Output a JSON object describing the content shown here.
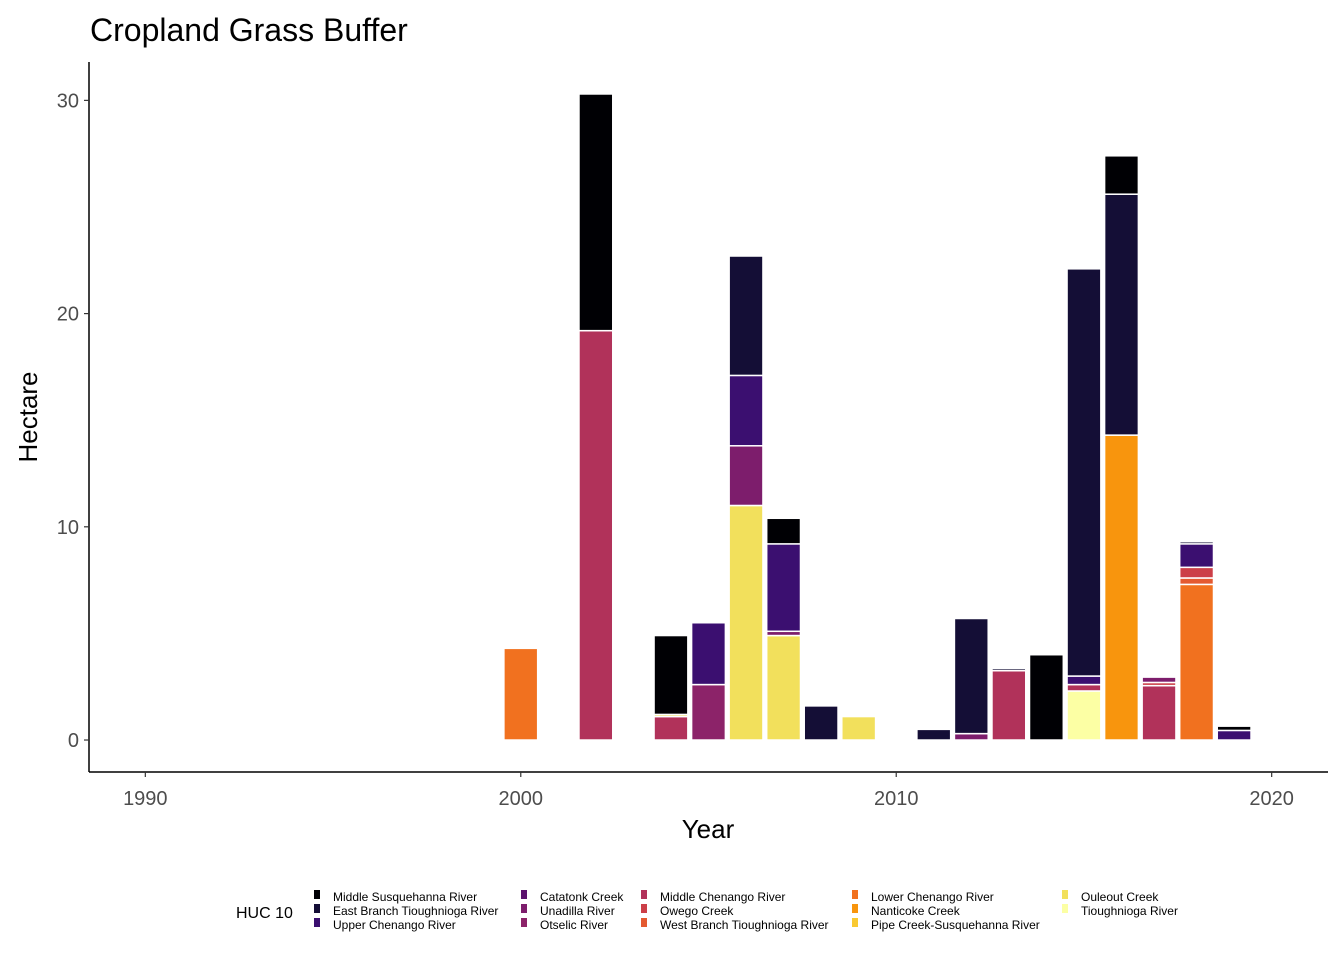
{
  "chart_data": {
    "type": "bar",
    "stacked": true,
    "title": "Cropland Grass Buffer",
    "xlabel": "Year",
    "ylabel": "Hectare",
    "xlim": [
      1988.5,
      2021.5
    ],
    "ylim": [
      -1.5,
      31.8
    ],
    "x_ticks": [
      {
        "value": 1990,
        "label": "1990"
      },
      {
        "value": 2000,
        "label": "2000"
      },
      {
        "value": 2010,
        "label": "2010"
      },
      {
        "value": 2020,
        "label": "2020"
      }
    ],
    "y_ticks": [
      {
        "value": 0,
        "label": "0"
      },
      {
        "value": 10,
        "label": "10"
      },
      {
        "value": 20,
        "label": "20"
      },
      {
        "value": 30,
        "label": "30"
      }
    ],
    "grid": false,
    "legend": {
      "title": "HUC 10",
      "position": "bottom",
      "columns": [
        [
          "Middle Susquehanna River",
          "East Branch Tioughnioga River",
          "Upper Chenango River"
        ],
        [
          "Catatonk Creek",
          "Unadilla River",
          "Otselic River"
        ],
        [
          "Middle Chenango River",
          "Owego Creek",
          "West Branch Tioughnioga River"
        ],
        [
          "Lower Chenango River",
          "Nanticoke Creek",
          "Pipe Creek-Susquehanna River"
        ],
        [
          "Ouleout Creek",
          "Tioughnioga River"
        ]
      ]
    },
    "series": [
      {
        "name": "Middle Susquehanna River",
        "color": "#000004"
      },
      {
        "name": "East Branch Tioughnioga River",
        "color": "#140e36"
      },
      {
        "name": "Upper Chenango River",
        "color": "#3b0f70"
      },
      {
        "name": "Catatonk Creek",
        "color": "#5c126e"
      },
      {
        "name": "Unadilla River",
        "color": "#7d1d6c"
      },
      {
        "name": "Otselic River",
        "color": "#8c2369"
      },
      {
        "name": "Middle Chenango River",
        "color": "#b1325a"
      },
      {
        "name": "Owego Creek",
        "color": "#cc3f48"
      },
      {
        "name": "West Branch Tioughnioga River",
        "color": "#e45a31"
      },
      {
        "name": "Lower Chenango River",
        "color": "#f1711f"
      },
      {
        "name": "Nanticoke Creek",
        "color": "#f8950d"
      },
      {
        "name": "Pipe Creek-Susquehanna River",
        "color": "#f9c932"
      },
      {
        "name": "Ouleout Creek",
        "color": "#f2e05c"
      },
      {
        "name": "Tioughnioga River",
        "color": "#fcffa4"
      }
    ],
    "bars": [
      {
        "year": 2000,
        "stack": [
          {
            "series": "Lower Chenango River",
            "value": 4.3
          }
        ]
      },
      {
        "year": 2002,
        "stack": [
          {
            "series": "Middle Chenango River",
            "value": 19.2
          },
          {
            "series": "Middle Susquehanna River",
            "value": 11.1
          }
        ]
      },
      {
        "year": 2004,
        "stack": [
          {
            "series": "Middle Chenango River",
            "value": 1.1
          },
          {
            "series": "Ouleout Creek",
            "value": 0.1
          },
          {
            "series": "Middle Susquehanna River",
            "value": 3.7
          }
        ]
      },
      {
        "year": 2005,
        "stack": [
          {
            "series": "Otselic River",
            "value": 2.6
          },
          {
            "series": "Upper Chenango River",
            "value": 2.9
          }
        ]
      },
      {
        "year": 2006,
        "stack": [
          {
            "series": "Ouleout Creek",
            "value": 11.0
          },
          {
            "series": "Unadilla River",
            "value": 2.8
          },
          {
            "series": "Upper Chenango River",
            "value": 3.3
          },
          {
            "series": "East Branch Tioughnioga River",
            "value": 5.6
          }
        ]
      },
      {
        "year": 2007,
        "stack": [
          {
            "series": "Ouleout Creek",
            "value": 4.9
          },
          {
            "series": "Unadilla River",
            "value": 0.2
          },
          {
            "series": "Upper Chenango River",
            "value": 4.1
          },
          {
            "series": "Middle Susquehanna River",
            "value": 1.2
          }
        ]
      },
      {
        "year": 2008,
        "stack": [
          {
            "series": "East Branch Tioughnioga River",
            "value": 1.6
          }
        ]
      },
      {
        "year": 2009,
        "stack": [
          {
            "series": "Ouleout Creek",
            "value": 1.1
          }
        ]
      },
      {
        "year": 2011,
        "stack": [
          {
            "series": "East Branch Tioughnioga River",
            "value": 0.5
          }
        ]
      },
      {
        "year": 2012,
        "stack": [
          {
            "series": "Unadilla River",
            "value": 0.3
          },
          {
            "series": "East Branch Tioughnioga River",
            "value": 5.4
          }
        ]
      },
      {
        "year": 2013,
        "stack": [
          {
            "series": "Middle Chenango River",
            "value": 3.25
          },
          {
            "series": "East Branch Tioughnioga River",
            "value": 0.1
          }
        ]
      },
      {
        "year": 2014,
        "stack": [
          {
            "series": "Middle Susquehanna River",
            "value": 4.0
          }
        ]
      },
      {
        "year": 2015,
        "stack": [
          {
            "series": "Tioughnioga River",
            "value": 2.3
          },
          {
            "series": "Middle Chenango River",
            "value": 0.3
          },
          {
            "series": "Upper Chenango River",
            "value": 0.4
          },
          {
            "series": "East Branch Tioughnioga River",
            "value": 19.1
          }
        ]
      },
      {
        "year": 2016,
        "stack": [
          {
            "series": "Nanticoke Creek",
            "value": 14.3
          },
          {
            "series": "East Branch Tioughnioga River",
            "value": 11.3
          },
          {
            "series": "Middle Susquehanna River",
            "value": 1.8
          }
        ]
      },
      {
        "year": 2017,
        "stack": [
          {
            "series": "Middle Chenango River",
            "value": 2.55
          },
          {
            "series": "Owego Creek",
            "value": 0.15
          },
          {
            "series": "Unadilla River",
            "value": 0.25
          }
        ]
      },
      {
        "year": 2018,
        "stack": [
          {
            "series": "Lower Chenango River",
            "value": 7.3
          },
          {
            "series": "West Branch Tioughnioga River",
            "value": 0.3
          },
          {
            "series": "Owego Creek",
            "value": 0.5
          },
          {
            "series": "Upper Chenango River",
            "value": 1.1
          },
          {
            "series": "East Branch Tioughnioga River",
            "value": 0.1
          }
        ]
      },
      {
        "year": 2019,
        "stack": [
          {
            "series": "Upper Chenango River",
            "value": 0.45
          },
          {
            "series": "Middle Susquehanna River",
            "value": 0.2
          }
        ]
      }
    ]
  }
}
